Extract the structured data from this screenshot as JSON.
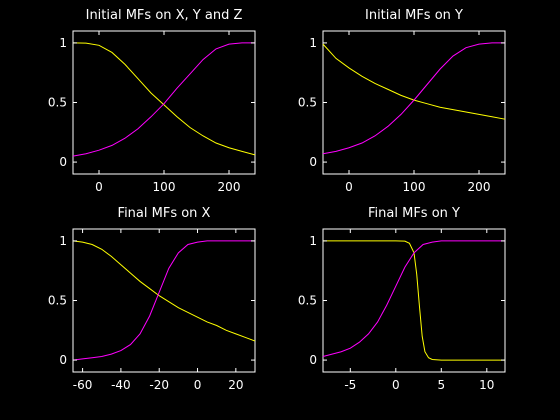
{
  "colors": {
    "background": "#000000",
    "axes": "#ffffff",
    "series_a": "#ffff00",
    "series_b": "#ff00ff"
  },
  "chart_data": [
    {
      "type": "line",
      "title": "Initial MFs on X, Y and Z",
      "xlim": [
        -40,
        240
      ],
      "ylim": [
        -0.1,
        1.1
      ],
      "xticks": [
        "0",
        "100",
        "200"
      ],
      "xtick_values": [
        0,
        100,
        200
      ],
      "yticks": [
        "0",
        "0.5",
        "1"
      ],
      "ytick_values": [
        0,
        0.5,
        1
      ],
      "grid": false,
      "series": [
        {
          "color": "#ffff00",
          "x": [
            -40,
            -20,
            0,
            20,
            40,
            60,
            80,
            100,
            120,
            140,
            160,
            180,
            200,
            220,
            240
          ],
          "y": [
            1.0,
            0.998,
            0.98,
            0.92,
            0.82,
            0.7,
            0.58,
            0.48,
            0.38,
            0.29,
            0.22,
            0.16,
            0.12,
            0.09,
            0.06
          ]
        },
        {
          "color": "#ff00ff",
          "x": [
            -40,
            -20,
            0,
            20,
            40,
            60,
            80,
            100,
            120,
            140,
            160,
            180,
            200,
            220,
            240
          ],
          "y": [
            0.05,
            0.07,
            0.1,
            0.14,
            0.2,
            0.28,
            0.38,
            0.49,
            0.62,
            0.74,
            0.86,
            0.95,
            0.99,
            1.0,
            1.0
          ]
        }
      ]
    },
    {
      "type": "line",
      "title": "Initial MFs on Y",
      "xlim": [
        -40,
        240
      ],
      "ylim": [
        -0.1,
        1.1
      ],
      "xticks": [
        "0",
        "100",
        "200"
      ],
      "xtick_values": [
        0,
        100,
        200
      ],
      "yticks": [
        "0",
        "0.5",
        "1"
      ],
      "ytick_values": [
        0,
        0.5,
        1
      ],
      "grid": false,
      "series": [
        {
          "color": "#ffff00",
          "x": [
            -40,
            -20,
            0,
            20,
            40,
            60,
            80,
            100,
            120,
            140,
            160,
            180,
            200,
            220,
            240
          ],
          "y": [
            0.99,
            0.87,
            0.79,
            0.72,
            0.66,
            0.61,
            0.56,
            0.52,
            0.49,
            0.46,
            0.44,
            0.42,
            0.4,
            0.38,
            0.36
          ]
        },
        {
          "color": "#ff00ff",
          "x": [
            -40,
            -20,
            0,
            20,
            40,
            60,
            80,
            100,
            120,
            140,
            160,
            180,
            200,
            220,
            240
          ],
          "y": [
            0.07,
            0.09,
            0.12,
            0.16,
            0.22,
            0.3,
            0.4,
            0.52,
            0.65,
            0.78,
            0.89,
            0.96,
            0.99,
            1.0,
            1.0
          ]
        }
      ]
    },
    {
      "type": "line",
      "title": "Final MFs on X",
      "xlim": [
        -65,
        30
      ],
      "ylim": [
        -0.1,
        1.1
      ],
      "xticks": [
        "-60",
        "-40",
        "-20",
        "0",
        "20"
      ],
      "xtick_values": [
        -60,
        -40,
        -20,
        0,
        20
      ],
      "yticks": [
        "0",
        "0.5",
        "1"
      ],
      "ytick_values": [
        0,
        0.5,
        1
      ],
      "grid": false,
      "series": [
        {
          "color": "#ffff00",
          "x": [
            -65,
            -60,
            -55,
            -50,
            -45,
            -40,
            -35,
            -30,
            -25,
            -20,
            -15,
            -10,
            -5,
            0,
            5,
            10,
            15,
            20,
            25,
            30
          ],
          "y": [
            1.0,
            0.99,
            0.97,
            0.93,
            0.87,
            0.8,
            0.73,
            0.66,
            0.6,
            0.54,
            0.49,
            0.44,
            0.4,
            0.36,
            0.32,
            0.29,
            0.25,
            0.22,
            0.19,
            0.16
          ]
        },
        {
          "color": "#ff00ff",
          "x": [
            -65,
            -60,
            -55,
            -50,
            -45,
            -40,
            -35,
            -30,
            -25,
            -20,
            -15,
            -10,
            -5,
            0,
            5,
            10,
            15,
            20,
            25,
            30
          ],
          "y": [
            0.0,
            0.01,
            0.02,
            0.03,
            0.05,
            0.08,
            0.13,
            0.22,
            0.37,
            0.57,
            0.77,
            0.9,
            0.97,
            0.99,
            1.0,
            1.0,
            1.0,
            1.0,
            1.0,
            1.0
          ]
        }
      ]
    },
    {
      "type": "line",
      "title": "Final MFs on Y",
      "xlim": [
        -8,
        12
      ],
      "ylim": [
        -0.1,
        1.1
      ],
      "xticks": [
        "-5",
        "0",
        "5",
        "10"
      ],
      "xtick_values": [
        -5,
        0,
        5,
        10
      ],
      "yticks": [
        "0",
        "0.5",
        "1"
      ],
      "ytick_values": [
        0,
        0.5,
        1
      ],
      "grid": false,
      "series": [
        {
          "color": "#ffff00",
          "x": [
            -8,
            -6,
            -4,
            -2,
            0,
            1,
            1.5,
            2,
            2.3,
            2.6,
            2.9,
            3.2,
            3.6,
            4,
            5,
            6,
            8,
            10,
            12
          ],
          "y": [
            1.0,
            1.0,
            1.0,
            1.0,
            1.0,
            0.998,
            0.98,
            0.9,
            0.72,
            0.45,
            0.2,
            0.07,
            0.02,
            0.005,
            0.0,
            0.0,
            0.0,
            0.0,
            0.0
          ]
        },
        {
          "color": "#ff00ff",
          "x": [
            -8,
            -7,
            -6,
            -5,
            -4,
            -3,
            -2,
            -1,
            0,
            1,
            2,
            3,
            4,
            5,
            6,
            8,
            10,
            12
          ],
          "y": [
            0.03,
            0.05,
            0.07,
            0.1,
            0.15,
            0.22,
            0.32,
            0.46,
            0.62,
            0.78,
            0.9,
            0.97,
            0.99,
            1.0,
            1.0,
            1.0,
            1.0,
            1.0
          ]
        }
      ]
    }
  ]
}
